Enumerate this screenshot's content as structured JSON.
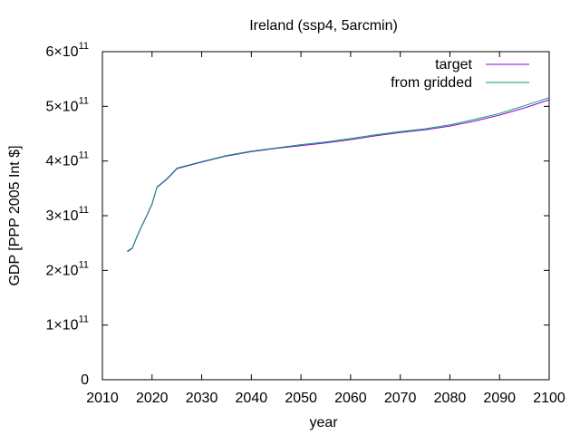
{
  "chart_data": {
    "type": "line",
    "title": "Ireland (ssp4, 5arcmin)",
    "xlabel": "year",
    "ylabel": "GDP [PPP 2005 Int $]",
    "xlim": [
      2010,
      2100
    ],
    "ylim": [
      0,
      600000000000
    ],
    "x_ticks": [
      {
        "value": 2010,
        "label": "2010"
      },
      {
        "value": 2020,
        "label": "2020"
      },
      {
        "value": 2030,
        "label": "2030"
      },
      {
        "value": 2040,
        "label": "2040"
      },
      {
        "value": 2050,
        "label": "2050"
      },
      {
        "value": 2060,
        "label": "2060"
      },
      {
        "value": 2070,
        "label": "2070"
      },
      {
        "value": 2080,
        "label": "2080"
      },
      {
        "value": 2090,
        "label": "2090"
      },
      {
        "value": 2100,
        "label": "2100"
      }
    ],
    "y_ticks": [
      {
        "value": 0,
        "mant": "0",
        "exp": ""
      },
      {
        "value": 100000000000,
        "mant": "1×10",
        "exp": "11"
      },
      {
        "value": 200000000000,
        "mant": "2×10",
        "exp": "11"
      },
      {
        "value": 300000000000,
        "mant": "3×10",
        "exp": "11"
      },
      {
        "value": 400000000000,
        "mant": "4×10",
        "exp": "11"
      },
      {
        "value": 500000000000,
        "mant": "5×10",
        "exp": "11"
      },
      {
        "value": 600000000000,
        "mant": "6×10",
        "exp": "11"
      }
    ],
    "grid": false,
    "legend_position": "top-right",
    "x": [
      2015,
      2016,
      2017,
      2018,
      2019,
      2020,
      2021,
      2022,
      2023,
      2024,
      2025,
      2030,
      2035,
      2040,
      2045,
      2050,
      2055,
      2060,
      2065,
      2070,
      2075,
      2080,
      2085,
      2090,
      2095,
      2100
    ],
    "series": [
      {
        "name": "target",
        "color": "#9400d3",
        "values": [
          234000000000,
          240000000000,
          262000000000,
          282000000000,
          301000000000,
          321000000000,
          352000000000,
          359000000000,
          367000000000,
          376000000000,
          386000000000,
          398000000000,
          409000000000,
          417000000000,
          423000000000,
          428000000000,
          433000000000,
          439000000000,
          446000000000,
          452000000000,
          457000000000,
          464000000000,
          473000000000,
          484000000000,
          497000000000,
          512000000000
        ]
      },
      {
        "name": "from gridded",
        "color": "#009e73",
        "values": [
          235000000000,
          241000000000,
          263000000000,
          283000000000,
          302000000000,
          322000000000,
          353000000000,
          360000000000,
          368000000000,
          377000000000,
          387000000000,
          399000000000,
          410000000000,
          418000000000,
          424000000000,
          430000000000,
          435000000000,
          441000000000,
          448000000000,
          454000000000,
          459000000000,
          466000000000,
          476000000000,
          487000000000,
          501000000000,
          516000000000
        ]
      }
    ]
  }
}
